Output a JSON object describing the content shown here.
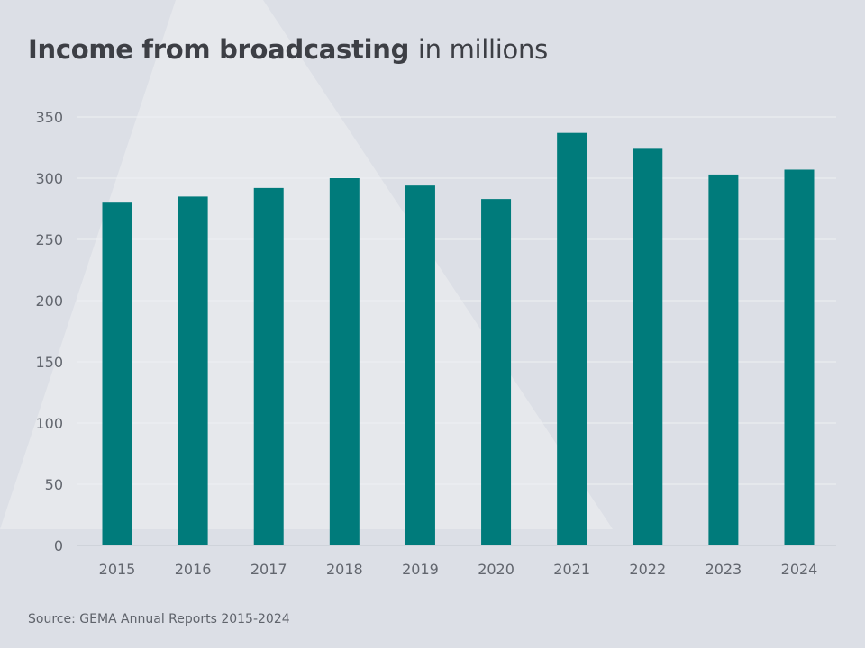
{
  "colors": {
    "background": "#dcdfe6",
    "highlight": "#e6e8ec",
    "bar": "#007b7b",
    "grid": "#eef0f3",
    "axis": "#cfd3da",
    "text": "#3d3f45",
    "tick_text": "#62666e"
  },
  "title": {
    "bold": "Income from broadcasting",
    "light": "in millions"
  },
  "source": "Source: GEMA Annual Reports 2015-2024",
  "chart_data": {
    "type": "bar",
    "title": "Income from broadcasting in millions",
    "xlabel": "",
    "ylabel": "",
    "categories": [
      "2015",
      "2016",
      "2017",
      "2018",
      "2019",
      "2020",
      "2021",
      "2022",
      "2023",
      "2024"
    ],
    "values": [
      280,
      285,
      292,
      300,
      294,
      283,
      337,
      324,
      303,
      307
    ],
    "ylim": [
      0,
      350
    ],
    "yticks": [
      0,
      50,
      100,
      150,
      200,
      250,
      300,
      350
    ],
    "grid": true,
    "legend": "none"
  }
}
